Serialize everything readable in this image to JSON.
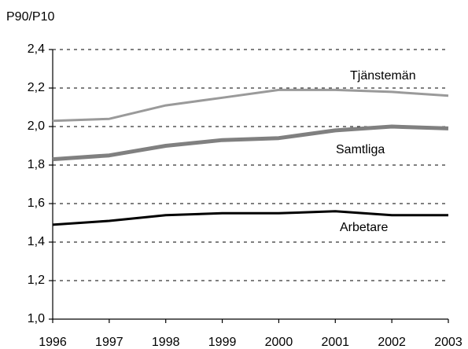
{
  "chart_data": {
    "type": "line",
    "y_label": "P90/P10",
    "categories": [
      "1996",
      "1997",
      "1998",
      "1999",
      "2000",
      "2001",
      "2002",
      "2003"
    ],
    "series": [
      {
        "name": "Tjänstemän",
        "color": "#9a9a9a",
        "values": [
          2.03,
          2.04,
          2.11,
          2.15,
          2.19,
          2.19,
          2.18,
          2.16
        ]
      },
      {
        "name": "Samtliga",
        "color": "#808080",
        "values": [
          1.83,
          1.85,
          1.9,
          1.93,
          1.94,
          1.98,
          2.0,
          1.99
        ]
      },
      {
        "name": "Arbetare",
        "color": "#000000",
        "values": [
          1.49,
          1.51,
          1.54,
          1.55,
          1.55,
          1.56,
          1.54,
          1.54
        ]
      }
    ],
    "ylim": [
      1.0,
      2.4
    ],
    "yticks": [
      {
        "value": 1.0,
        "label": "1,0"
      },
      {
        "value": 1.2,
        "label": "1,2"
      },
      {
        "value": 1.4,
        "label": "1,4"
      },
      {
        "value": 1.6,
        "label": "1,6"
      },
      {
        "value": 1.8,
        "label": "1,8"
      },
      {
        "value": 2.0,
        "label": "2,0"
      },
      {
        "value": 2.2,
        "label": "2,2"
      },
      {
        "value": 2.4,
        "label": "2,4"
      }
    ],
    "grid": true
  }
}
